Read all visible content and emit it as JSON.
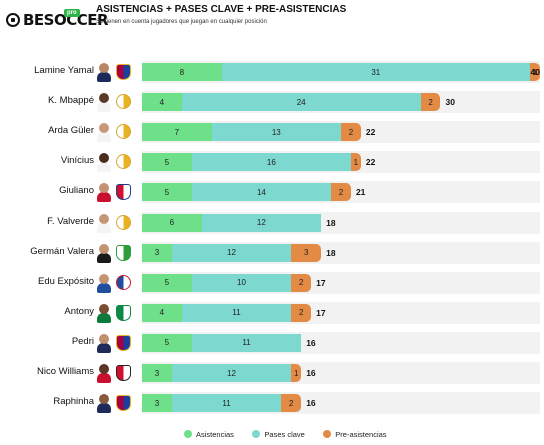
{
  "header": {
    "logo_text": "BESOCCER",
    "logo_badge": "pro",
    "title": "ASISTENCIAS + PASES CLAVE + PRE-ASISTENCIAS",
    "subtitle": "Se tienen en cuenta jugadores que juegan en cualquier posición"
  },
  "colors": {
    "asistencias": "#6ee08a",
    "pases_clave": "#7dd8cf",
    "pre_asistencias": "#e38b45",
    "track": "#f2f2f2"
  },
  "chart_data": {
    "type": "bar",
    "orientation": "horizontal",
    "stacked": true,
    "title": "ASISTENCIAS + PASES CLAVE + PRE-ASISTENCIAS",
    "subtitle": "Se tienen en cuenta jugadores que juegan en cualquier posición",
    "categories": [
      "Lamine Yamal",
      "K. Mbappé",
      "Arda Güler",
      "Vinícius",
      "Giuliano",
      "F. Valverde",
      "Germán Valera",
      "Edu Expósito",
      "Antony",
      "Pedri",
      "Nico Williams",
      "Raphinha"
    ],
    "series": [
      {
        "name": "Asistencias",
        "values": [
          8,
          4,
          7,
          5,
          5,
          6,
          3,
          5,
          4,
          5,
          3,
          3
        ]
      },
      {
        "name": "Pases clave",
        "values": [
          31,
          24,
          13,
          16,
          14,
          12,
          12,
          10,
          11,
          11,
          12,
          11
        ]
      },
      {
        "name": "Pre-asistencias",
        "values": [
          1,
          2,
          2,
          1,
          2,
          0,
          3,
          2,
          2,
          0,
          1,
          2
        ]
      }
    ],
    "totals": [
      "40",
      "30",
      "22",
      "22",
      "21",
      "18",
      "18",
      "17",
      "17",
      "16",
      "16",
      "16"
    ],
    "xlim": [
      0,
      40
    ],
    "grid": false,
    "legend": "bottom-center"
  },
  "players": [
    {
      "name": "Lamine Yamal",
      "skin": "#b98663",
      "kit": "#1e2a5a",
      "crest": {
        "type": "shield",
        "c1": "#a50044",
        "c2": "#1b3f9b",
        "border": "#e8b321"
      }
    },
    {
      "name": "K. Mbappé",
      "skin": "#5a3a28",
      "kit": "#f4f4f4",
      "crest": {
        "type": "round",
        "c1": "#ffffff",
        "c2": "#e8b321",
        "border": "#d4a52a"
      }
    },
    {
      "name": "Arda Güler",
      "skin": "#c89878",
      "kit": "#f4f4f4",
      "crest": {
        "type": "round",
        "c1": "#ffffff",
        "c2": "#e8b321",
        "border": "#d4a52a"
      }
    },
    {
      "name": "Vinícius",
      "skin": "#4a2c1c",
      "kit": "#f4f4f4",
      "crest": {
        "type": "round",
        "c1": "#ffffff",
        "c2": "#e8b321",
        "border": "#d4a52a"
      }
    },
    {
      "name": "Giuliano",
      "skin": "#c49272",
      "kit": "#c8102e",
      "crest": {
        "type": "shield",
        "c1": "#d0102e",
        "c2": "#ffffff",
        "border": "#1f3f8f"
      }
    },
    {
      "name": "F. Valverde",
      "skin": "#c59676",
      "kit": "#f4f4f4",
      "crest": {
        "type": "round",
        "c1": "#ffffff",
        "c2": "#e8b321",
        "border": "#d4a52a"
      }
    },
    {
      "name": "Germán Valera",
      "skin": "#c39374",
      "kit": "#1a1a1a",
      "crest": {
        "type": "shield",
        "c1": "#ffffff",
        "c2": "#2f9e3a",
        "border": "#2f9e3a"
      }
    },
    {
      "name": "Edu Expósito",
      "skin": "#c49474",
      "kit": "#1f4e9c",
      "crest": {
        "type": "round",
        "c1": "#1f4e9c",
        "c2": "#ffffff",
        "border": "#c8102e"
      }
    },
    {
      "name": "Antony",
      "skin": "#7a4e34",
      "kit": "#0b7a3b",
      "crest": {
        "type": "shield",
        "c1": "#0b8a45",
        "c2": "#ffffff",
        "border": "#0b8a45"
      }
    },
    {
      "name": "Pedri",
      "skin": "#c09070",
      "kit": "#1e2a5a",
      "crest": {
        "type": "shield",
        "c1": "#a50044",
        "c2": "#1b3f9b",
        "border": "#e8b321"
      }
    },
    {
      "name": "Nico Williams",
      "skin": "#5a3624",
      "kit": "#c8102e",
      "crest": {
        "type": "shield",
        "c1": "#d0102e",
        "c2": "#ffffff",
        "border": "#222222"
      }
    },
    {
      "name": "Raphinha",
      "skin": "#8a5a3c",
      "kit": "#1e2a5a",
      "crest": {
        "type": "shield",
        "c1": "#a50044",
        "c2": "#1b3f9b",
        "border": "#e8b321"
      }
    }
  ],
  "legend": [
    {
      "label": "Asistencias",
      "color": "#6ee08a"
    },
    {
      "label": "Pases clave",
      "color": "#7dd8cf"
    },
    {
      "label": "Pre-asistencias",
      "color": "#e38b45"
    }
  ]
}
